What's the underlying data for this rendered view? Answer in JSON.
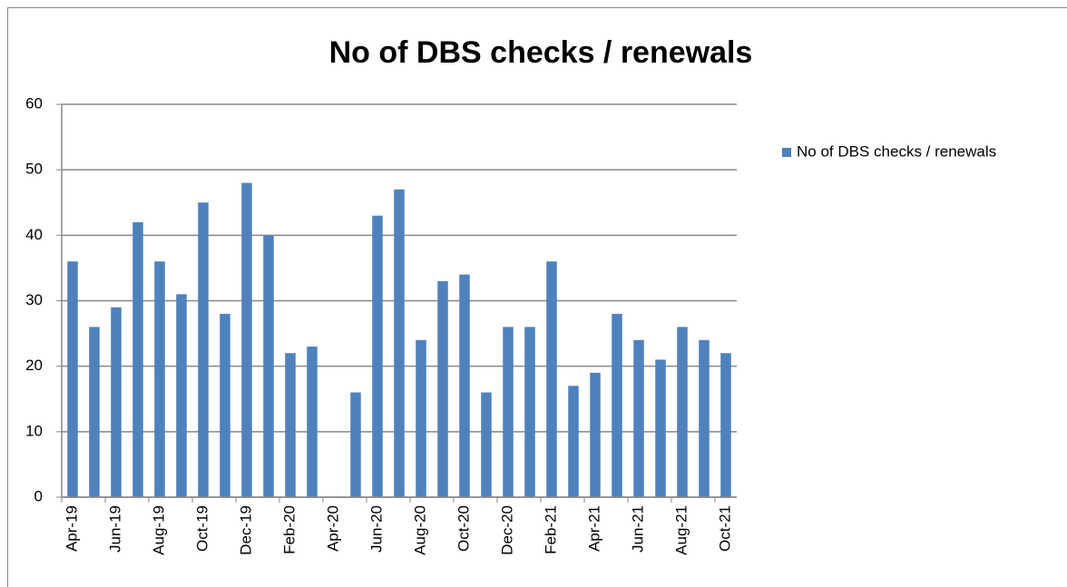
{
  "chart_data": {
    "type": "bar",
    "title": "No of DBS checks / renewals",
    "categories": [
      "Apr-19",
      null,
      "Jun-19",
      null,
      "Aug-19",
      null,
      "Oct-19",
      null,
      "Dec-19",
      null,
      "Feb-20",
      null,
      "Apr-20",
      null,
      "Jun-20",
      null,
      "Aug-20",
      null,
      "Oct-20",
      null,
      "Dec-20",
      null,
      "Feb-21",
      null,
      "Apr-21",
      null,
      "Jun-21",
      null,
      "Aug-21",
      null,
      "Oct-21"
    ],
    "series": [
      {
        "name": "No of DBS checks / renewals",
        "color": "#4f81bd",
        "values": [
          36,
          26,
          29,
          42,
          36,
          31,
          45,
          28,
          48,
          40,
          22,
          23,
          null,
          16,
          43,
          47,
          24,
          33,
          34,
          16,
          26,
          26,
          36,
          17,
          19,
          28,
          24,
          21,
          26,
          24,
          22
        ]
      }
    ],
    "ylim": [
      0,
      60
    ],
    "yticks": [
      0,
      10,
      20,
      30,
      40,
      50,
      60
    ],
    "grid": true,
    "legend": "right"
  }
}
